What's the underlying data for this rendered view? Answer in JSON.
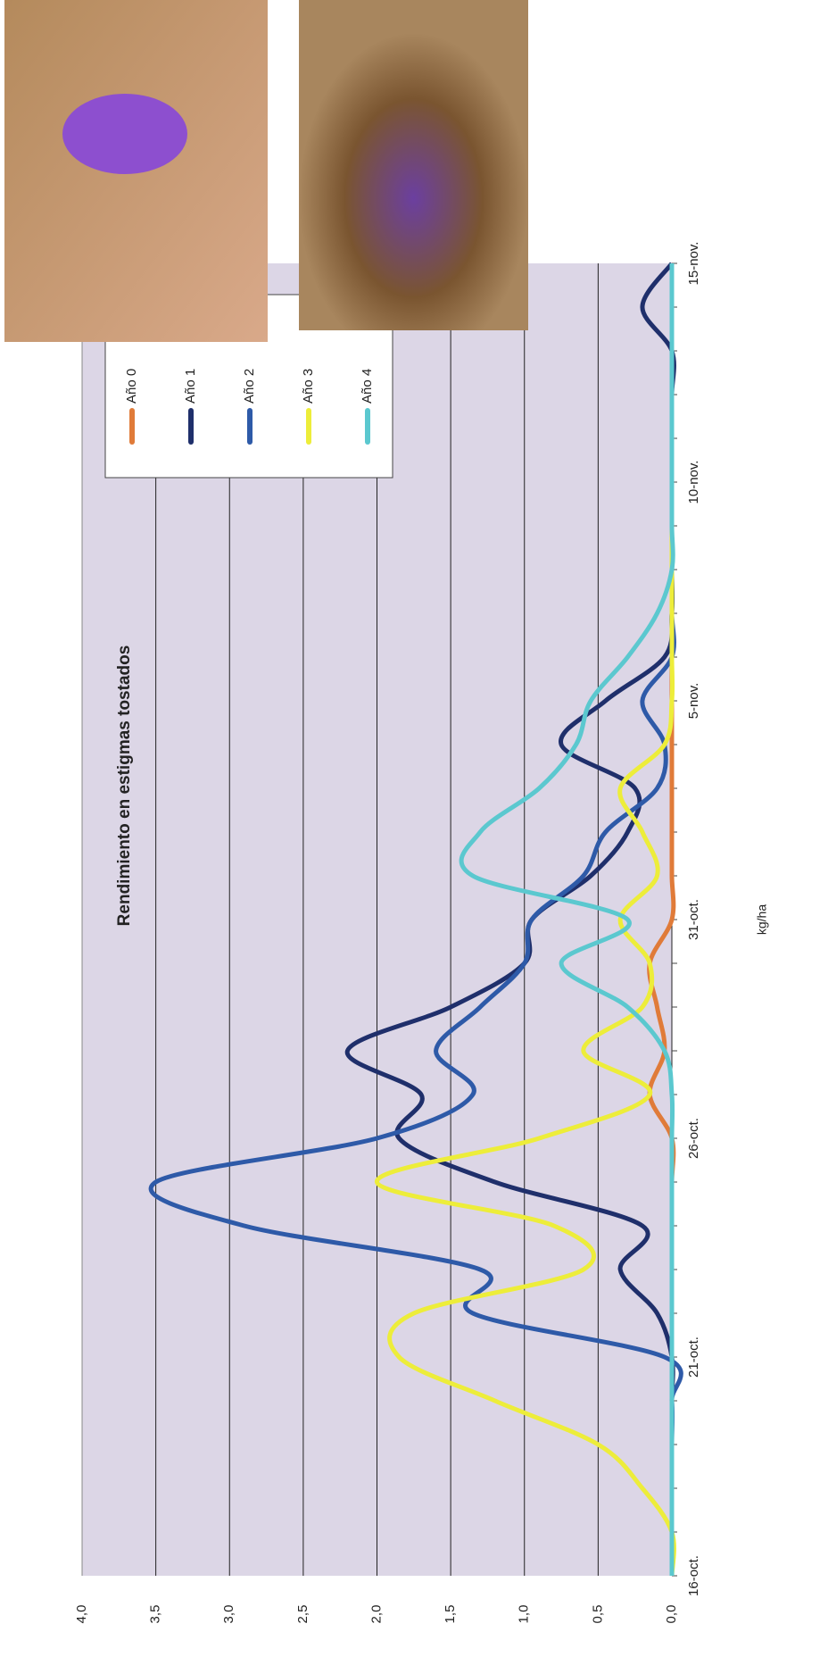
{
  "chart_data": {
    "type": "line",
    "title": "Rendimiento en estigmas tostados",
    "y_label": "kg/ha",
    "categories": [
      "16-oct.",
      null,
      null,
      null,
      null,
      "21-oct.",
      null,
      null,
      null,
      null,
      "26-oct.",
      null,
      null,
      null,
      null,
      "31-oct.",
      null,
      null,
      null,
      null,
      "5-nov.",
      null,
      null,
      null,
      null,
      "10-nov.",
      null,
      null,
      null,
      null,
      "15-nov."
    ],
    "ylim": [
      0,
      4
    ],
    "yticks": [
      {
        "value": 0,
        "label": "0,0"
      },
      {
        "value": 0.5,
        "label": "0,5"
      },
      {
        "value": 1,
        "label": "1,0"
      },
      {
        "value": 1.5,
        "label": "1,5"
      },
      {
        "value": 2,
        "label": "2,0"
      },
      {
        "value": 2.5,
        "label": "2,5"
      },
      {
        "value": 3,
        "label": "3,0"
      },
      {
        "value": 3.5,
        "label": "3,5"
      },
      {
        "value": 4,
        "label": "4,0"
      }
    ],
    "grid": true,
    "legend": "top-right",
    "series": [
      {
        "name": "Año 0",
        "color": "#e07b39",
        "values": [
          0,
          0,
          0,
          0,
          0,
          0,
          0,
          0,
          0,
          0,
          0,
          0.15,
          0.05,
          0.1,
          0.15,
          0,
          0,
          0,
          0,
          0,
          0,
          0,
          0,
          0,
          0,
          0,
          0,
          0,
          0,
          0,
          0
        ]
      },
      {
        "name": "Año 1",
        "color": "#1f2f6b",
        "values": [
          0,
          0,
          0,
          0,
          0,
          0,
          0.1,
          0.35,
          0.2,
          1.2,
          1.85,
          1.7,
          2.2,
          1.5,
          1.0,
          0.95,
          0.55,
          0.3,
          0.25,
          0.75,
          0.45,
          0.05,
          0,
          0,
          0,
          0,
          0,
          0,
          0,
          0.2,
          0
        ]
      },
      {
        "name": "Año 2",
        "color": "#2e5aa8",
        "values": [
          0,
          0,
          0,
          0,
          0,
          0.05,
          1.35,
          1.3,
          2.9,
          3.5,
          2.0,
          1.35,
          1.6,
          1.3,
          1.0,
          0.95,
          0.6,
          0.45,
          0.1,
          0.05,
          0.2,
          0,
          0,
          0,
          0,
          0,
          0,
          0,
          0,
          0,
          0
        ]
      },
      {
        "name": "Año 3",
        "color": "#eded3a",
        "values": [
          0,
          0,
          0.2,
          0.5,
          1.2,
          1.85,
          1.75,
          0.6,
          0.8,
          2.0,
          0.9,
          0.15,
          0.6,
          0.2,
          0.15,
          0.35,
          0.1,
          0.2,
          0.35,
          0.05,
          0,
          0,
          0,
          0,
          0,
          0,
          0,
          0,
          0,
          0,
          0
        ]
      },
      {
        "name": "Año 4",
        "color": "#5bc8cf",
        "values": [
          0,
          0,
          0,
          0,
          0,
          0,
          0,
          0,
          0,
          0,
          0,
          0,
          0.05,
          0.3,
          0.75,
          0.3,
          1.35,
          1.3,
          0.9,
          0.65,
          0.55,
          0.3,
          0.1,
          0,
          0,
          0,
          0,
          0,
          0,
          0,
          0
        ]
      }
    ]
  }
}
